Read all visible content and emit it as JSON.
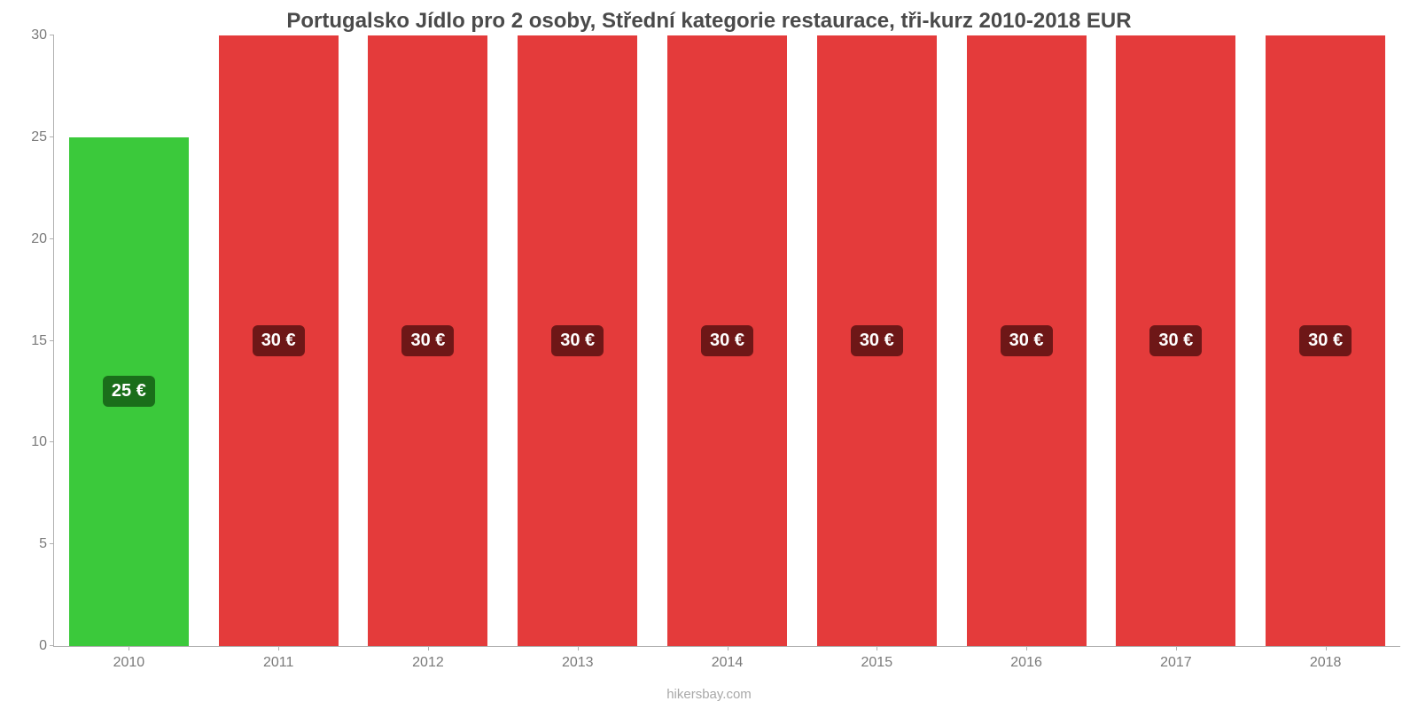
{
  "chart": {
    "type": "bar",
    "title": "Portugalsko Jídlo pro 2 osoby, Střední kategorie restaurace, tři-kurz 2010-2018 EUR",
    "title_fontsize": 24,
    "title_color": "#4a4a4a",
    "background_color": "#ffffff",
    "axis_color": "#b0b0b0",
    "tick_label_color": "#7a7a7a",
    "tick_fontsize": 16,
    "ylim": [
      0,
      30
    ],
    "ytick_step": 5,
    "yticks": [
      "0",
      "5",
      "10",
      "15",
      "20",
      "25",
      "30"
    ],
    "categories": [
      "2010",
      "2011",
      "2012",
      "2013",
      "2014",
      "2015",
      "2016",
      "2017",
      "2018"
    ],
    "values": [
      25,
      30,
      30,
      30,
      30,
      30,
      30,
      30,
      30
    ],
    "value_labels": [
      "25 €",
      "30 €",
      "30 €",
      "30 €",
      "30 €",
      "30 €",
      "30 €",
      "30 €",
      "30 €"
    ],
    "bar_colors": [
      "#3bc93b",
      "#e43b3b",
      "#e43b3b",
      "#e43b3b",
      "#e43b3b",
      "#e43b3b",
      "#e43b3b",
      "#e43b3b",
      "#e43b3b"
    ],
    "label_bg_colors": [
      "#1a6e1a",
      "#6e1717",
      "#6e1717",
      "#6e1717",
      "#6e1717",
      "#6e1717",
      "#6e1717",
      "#6e1717",
      "#6e1717"
    ],
    "bar_label_fontsize": 20,
    "bar_label_color": "#ffffff",
    "bar_width_pct": 80,
    "attribution": "hikersbay.com",
    "attribution_color": "#a8a8a8",
    "attribution_fontsize": 15
  }
}
